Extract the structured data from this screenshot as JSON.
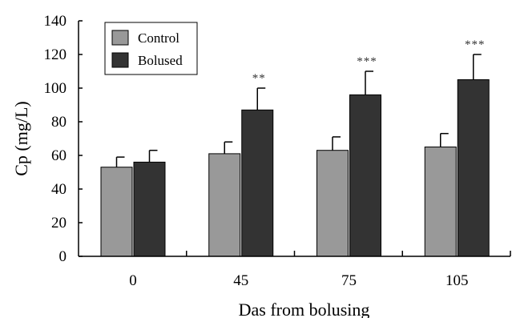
{
  "chart_data": {
    "type": "bar",
    "categories": [
      "0",
      "45",
      "75",
      "105"
    ],
    "series": [
      {
        "name": "Control",
        "color": "#999999",
        "values": [
          53,
          61,
          63,
          65
        ],
        "errors": [
          6,
          7,
          8,
          8
        ]
      },
      {
        "name": "Bolused",
        "color": "#333333",
        "values": [
          56,
          87,
          96,
          105
        ],
        "errors": [
          7,
          13,
          14,
          15
        ]
      }
    ],
    "significance": [
      "",
      "**",
      "***",
      "***"
    ],
    "xlabel": "Das from bolusing",
    "ylabel": "Cp (mg/L)",
    "ylim": [
      0,
      140
    ],
    "yticks": [
      0,
      20,
      40,
      60,
      80,
      100,
      120,
      140
    ],
    "legend_position": "top-left",
    "grid": false
  }
}
